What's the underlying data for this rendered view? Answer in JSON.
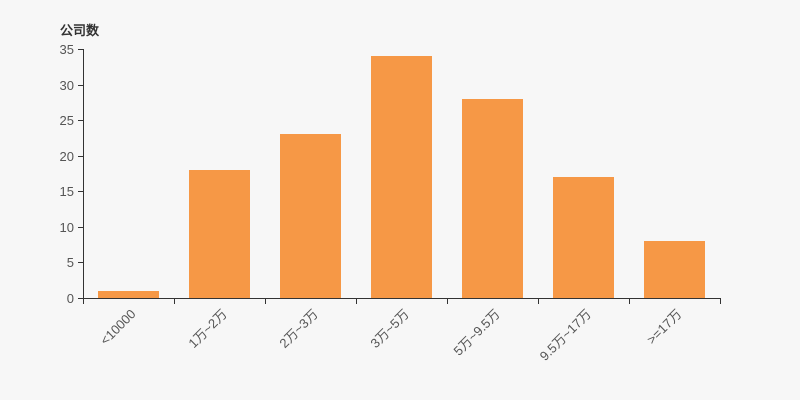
{
  "chart_data": {
    "type": "bar",
    "title": "公司数",
    "ylabel": "公司数",
    "xlabel": "",
    "categories": [
      "<10000",
      "1万~2万",
      "2万~3万",
      "3万~5万",
      "5万~9.5万",
      "9.5万~17万",
      ">=17万"
    ],
    "values": [
      1,
      18,
      23,
      34,
      28,
      17,
      8
    ],
    "ylim": [
      0,
      35
    ],
    "ytick_step": 5,
    "ytick_labels": [
      "0",
      "5",
      "10",
      "15",
      "20",
      "25",
      "30",
      "35"
    ],
    "grid": "off",
    "legend_position": "none",
    "colors": {
      "bar": "#f69846",
      "background": "#f7f7f7",
      "axis": "#333333",
      "tick_label": "#555555",
      "title": "#333333"
    }
  }
}
